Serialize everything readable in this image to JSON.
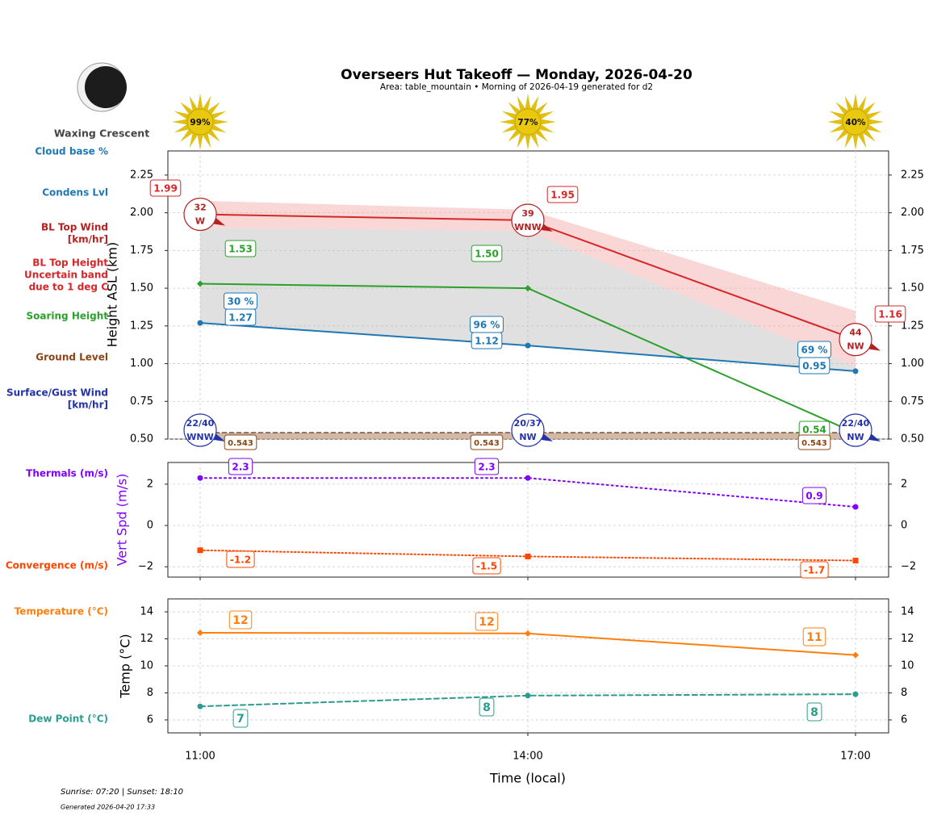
{
  "title": "Overseers Hut Takeoff — Monday, 2026-04-20",
  "subtitle": "Area: table_mountain • Morning of 2026-04-19 generated for d2",
  "moon": {
    "phase": "Waxing Crescent"
  },
  "sun": {
    "values": [
      99,
      77,
      40
    ],
    "value_labels": [
      "99%",
      "77%",
      "40%"
    ]
  },
  "footer": {
    "sun_times": "Sunrise: 07:20 | Sunset: 18:10",
    "generated": "Generated 2026-04-20 17:33"
  },
  "chart_data": [
    {
      "type": "line",
      "ylabel": "Height ASL (km)",
      "ylim": [
        0.5,
        2.41
      ],
      "yticks": [
        {
          "value": 0.5,
          "label": "0.50"
        },
        0.75,
        {
          "value": 1,
          "label": "1.00"
        },
        1.25,
        {
          "value": 1.5,
          "label": "1.50"
        },
        1.75,
        {
          "value": 2,
          "label": "2.00"
        },
        2.25
      ],
      "grid": true,
      "series": [
        {
          "name": "BL Top Height",
          "band_label": [
            "Uncertain band",
            "due to 1 deg C"
          ],
          "color": "#d62728",
          "values": [
            1.99,
            1.95,
            1.16
          ],
          "band_upper": [
            2.08,
            2.02,
            1.35
          ],
          "band_lower": [
            1.9,
            1.88,
            0.98
          ]
        },
        {
          "name": "Soaring Height",
          "color": "#2ca02c",
          "values": [
            1.53,
            1.5,
            0.54
          ],
          "value_labels": [
            "1.53",
            "1.50",
            "0.54"
          ],
          "marker": "diamond"
        },
        {
          "name": "Condens Lvl",
          "color": "#1f77b4",
          "values": [
            1.27,
            1.12,
            0.95
          ],
          "marker": "circle",
          "cloud_base_label": "Cloud base %",
          "cloud_base": [
            30,
            96,
            69
          ],
          "cloud_base_labels": [
            "30 %",
            "96 %",
            "69 %"
          ]
        },
        {
          "name": "Ground Level",
          "color": "#8b4513",
          "values": [
            0.543,
            0.543,
            0.543
          ]
        }
      ],
      "winds": [
        {
          "name_lines": [
            "BL Top Wind",
            "[km/hr]"
          ],
          "color": "#b22222",
          "speed": [
            32,
            39,
            44
          ],
          "direction": [
            "W",
            "WNW",
            "NW"
          ]
        },
        {
          "name_lines": [
            "Surface/Gust Wind",
            "[km/hr]"
          ],
          "color": "#2233aa",
          "speed": [
            "22/40",
            "20/37",
            "22/40"
          ],
          "direction": [
            "WNW",
            "NW",
            "NW"
          ]
        }
      ]
    },
    {
      "type": "line",
      "ylabel": "Vert Spd (m/s)",
      "ylabel_color": "#7f00ff",
      "ylim": [
        -2.5,
        3.05
      ],
      "yticks": [
        {
          "value": -2,
          "label": "−2"
        },
        0,
        2
      ],
      "grid": true,
      "series": [
        {
          "name": "Thermals (m/s)",
          "color": "#7f00ff",
          "values": [
            2.3,
            2.3,
            0.9
          ],
          "dash": "dotted",
          "marker": "circle"
        },
        {
          "name": "Convergence (m/s)",
          "color": "#ff4500",
          "values": [
            -1.2,
            -1.5,
            -1.7
          ],
          "dash": "fine-dotted",
          "marker": "square"
        }
      ]
    },
    {
      "type": "line",
      "ylabel": "Temp (°C)",
      "xlabel": "Time (local)",
      "categories": [
        "11:00",
        "14:00",
        "17:00"
      ],
      "ylim": [
        5.04,
        14.96
      ],
      "yticks": [
        6,
        8,
        10,
        12,
        14
      ],
      "grid": true,
      "series": [
        {
          "name": "Temperature (°C)",
          "color": "#ff7f0e",
          "values": [
            12.45,
            12.4,
            10.8
          ],
          "value_labels": [
            "12",
            "12",
            "11"
          ],
          "marker": "diamond"
        },
        {
          "name": "Dew Point (°C)",
          "color": "#2a9d8f",
          "values": [
            7.0,
            7.8,
            7.9
          ],
          "value_labels": [
            "7",
            "8",
            "8"
          ],
          "dash": "dashed",
          "marker": "circle"
        }
      ]
    }
  ]
}
